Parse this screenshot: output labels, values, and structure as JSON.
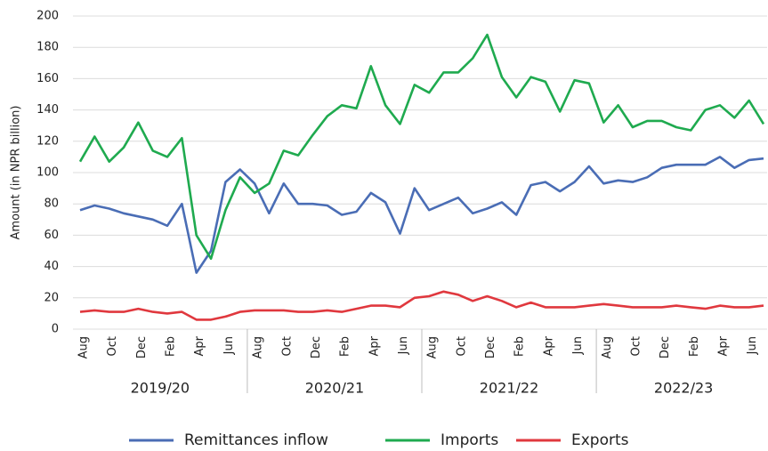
{
  "chart_data": {
    "type": "line",
    "y_label": "Amount (in NPR billion)",
    "categories": [
      "Aug",
      null,
      "Oct",
      null,
      "Dec",
      null,
      "Feb",
      null,
      "Apr",
      null,
      "Jun",
      null,
      "Aug",
      null,
      "Oct",
      null,
      "Dec",
      null,
      "Feb",
      null,
      "Apr",
      null,
      "Jun",
      null,
      "Aug",
      null,
      "Oct",
      null,
      "Dec",
      null,
      "Feb",
      null,
      "Apr",
      null,
      "Jun",
      null,
      "Aug",
      null,
      "Oct",
      null,
      "Dec",
      null,
      "Feb",
      null,
      "Apr",
      null,
      "Jun",
      null
    ],
    "fiscal_years": [
      "2019/20",
      "2020/21",
      "2021/22",
      "2022/23"
    ],
    "ylim": [
      0,
      200
    ],
    "yticks": [
      0,
      20,
      40,
      60,
      80,
      100,
      120,
      140,
      160,
      180,
      200
    ],
    "grid": true,
    "legend": "bottom",
    "series": [
      {
        "name": "Remittances inflow",
        "color": "#4a6db5",
        "values": [
          76,
          79,
          77,
          74,
          72,
          70,
          66,
          80,
          36,
          50,
          94,
          102,
          93,
          74,
          93,
          80,
          80,
          79,
          73,
          75,
          87,
          81,
          61,
          90,
          76,
          80,
          84,
          74,
          77,
          81,
          73,
          92,
          94,
          88,
          94,
          104,
          93,
          95,
          94,
          97,
          103,
          105,
          105,
          105,
          110,
          103,
          108,
          109
        ]
      },
      {
        "name": "Imports",
        "color": "#1faa4f",
        "values": [
          107,
          123,
          107,
          116,
          132,
          114,
          110,
          122,
          60,
          45,
          76,
          97,
          87,
          93,
          114,
          111,
          124,
          136,
          143,
          141,
          168,
          143,
          131,
          156,
          151,
          164,
          164,
          173,
          188,
          161,
          148,
          161,
          158,
          139,
          159,
          157,
          132,
          143,
          129,
          133,
          133,
          129,
          127,
          140,
          143,
          135,
          146,
          131
        ]
      },
      {
        "name": "Exports",
        "color": "#e0383e",
        "values": [
          11,
          12,
          11,
          11,
          13,
          11,
          10,
          11,
          6,
          6,
          8,
          11,
          12,
          12,
          12,
          11,
          11,
          12,
          11,
          13,
          15,
          15,
          14,
          20,
          21,
          24,
          22,
          18,
          21,
          18,
          14,
          17,
          14,
          14,
          14,
          15,
          16,
          15,
          14,
          14,
          14,
          15,
          14,
          13,
          15,
          14,
          14,
          15
        ]
      }
    ]
  }
}
